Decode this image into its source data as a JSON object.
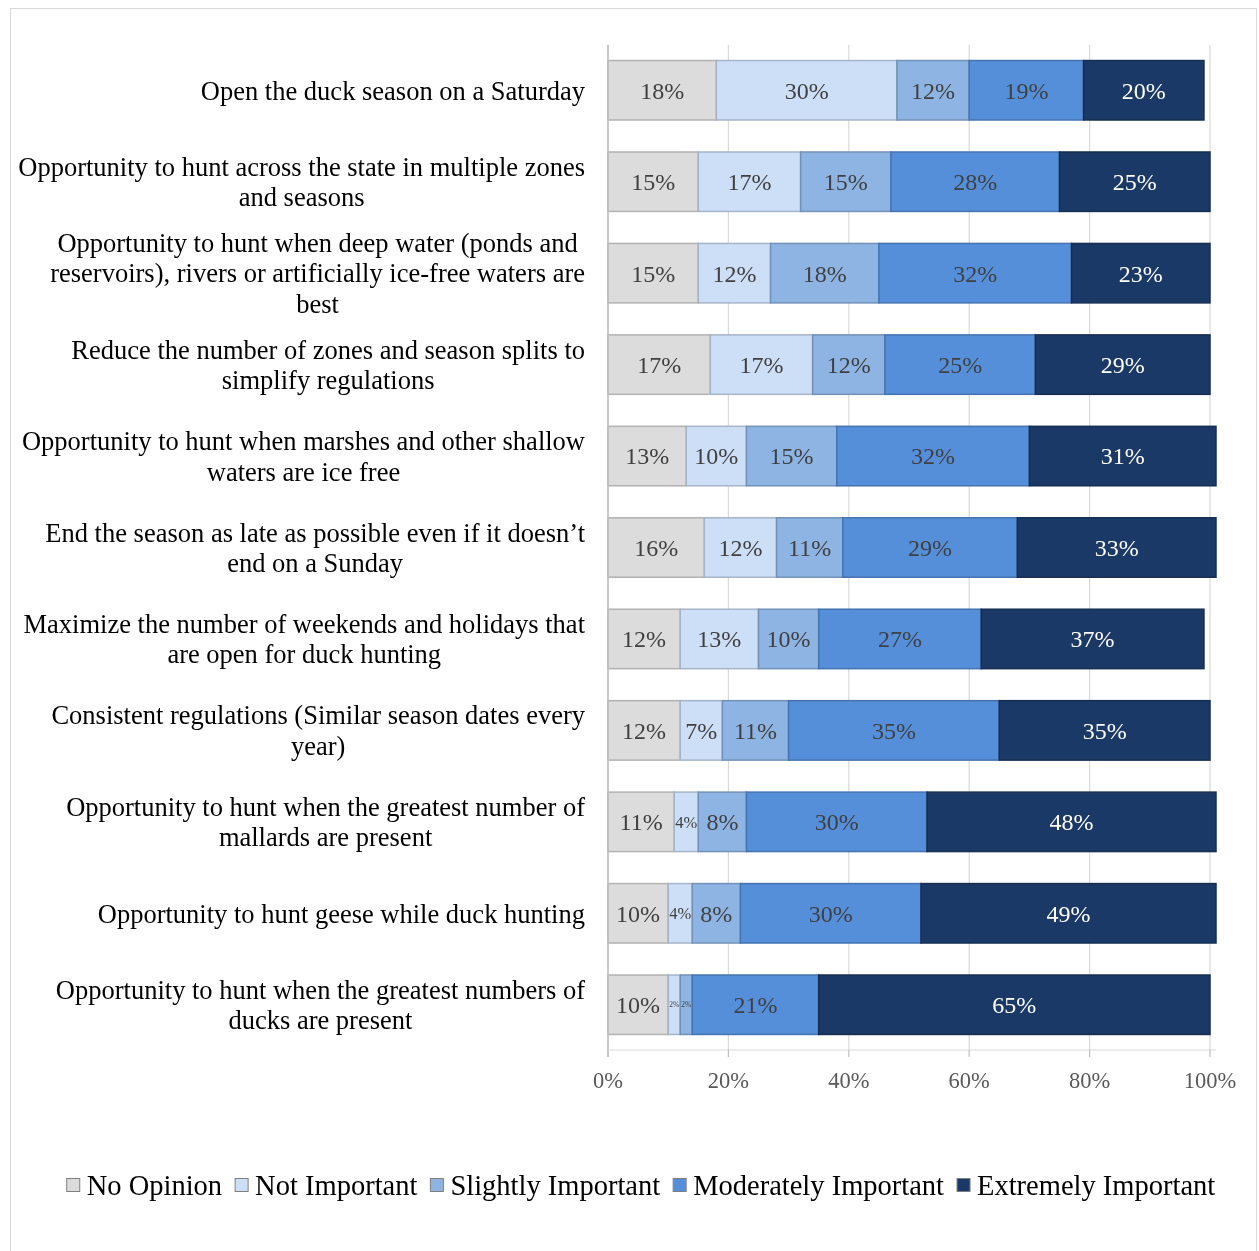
{
  "chart_data": {
    "type": "bar",
    "orientation": "horizontal",
    "stacked": true,
    "categories": [
      "Open the duck season on a Saturday",
      "Opportunity to hunt across the state in multiple zones and seasons",
      "Opportunity to hunt when deep water (ponds and reservoirs), rivers or artificially ice-free waters are best",
      "Reduce the number of zones and season splits to simplify regulations",
      "Opportunity to hunt when marshes and other shallow waters are ice free",
      "End the season as late as possible even if it doesn’t end on a Sunday",
      "Maximize the number of weekends and holidays that are open for duck hunting",
      "Consistent regulations (Similar season dates every year)",
      "Opportunity to hunt when the greatest number of mallards are present",
      "Opportunity to hunt geese while duck hunting",
      "Opportunity to hunt when the greatest numbers of ducks are present"
    ],
    "series": [
      {
        "name": "No Opinion",
        "color": "#dcdcdc",
        "values": [
          18,
          15,
          15,
          17,
          13,
          16,
          12,
          12,
          11,
          10,
          10
        ],
        "value_labels": [
          "18%",
          "15%",
          "15%",
          "17%",
          "13%",
          "16%",
          "12%",
          "12%",
          "11%",
          "10%",
          "10%"
        ]
      },
      {
        "name": "Not Important",
        "color": "#cddff7",
        "values": [
          30,
          17,
          12,
          17,
          10,
          12,
          13,
          7,
          4,
          4,
          2
        ],
        "value_labels": [
          "30%",
          "17%",
          "12%",
          "17%",
          "10%",
          "12%",
          "13%",
          "7%",
          "4%",
          "4%",
          "2%"
        ]
      },
      {
        "name": "Slightly Important",
        "color": "#8db4e3",
        "values": [
          12,
          15,
          18,
          12,
          15,
          11,
          10,
          11,
          8,
          8,
          2
        ],
        "value_labels": [
          "12%",
          "15%",
          "18%",
          "12%",
          "15%",
          "11%",
          "10%",
          "11%",
          "8%",
          "8%",
          "2%"
        ]
      },
      {
        "name": "Moderately Important",
        "color": "#558fda",
        "values": [
          19,
          28,
          32,
          25,
          32,
          29,
          27,
          35,
          30,
          30,
          21
        ],
        "value_labels": [
          "19%",
          "28%",
          "32%",
          "25%",
          "32%",
          "29%",
          "27%",
          "35%",
          "30%",
          "30%",
          "21%"
        ]
      },
      {
        "name": "Extremely Important",
        "color": "#1b3966",
        "values": [
          20,
          25,
          23,
          29,
          31,
          33,
          37,
          35,
          48,
          49,
          65
        ],
        "value_labels": [
          "20%",
          "25%",
          "23%",
          "29%",
          "31%",
          "33%",
          "37%",
          "35%",
          "48%",
          "49%",
          "65%"
        ]
      }
    ],
    "xlim": [
      0,
      101
    ],
    "xticks": [
      {
        "value": 0,
        "label": "0%"
      },
      {
        "value": 20,
        "label": "20%"
      },
      {
        "value": 40,
        "label": "40%"
      },
      {
        "value": 60,
        "label": "60%"
      },
      {
        "value": 80,
        "label": "80%"
      },
      {
        "value": 100,
        "label": "100%"
      }
    ],
    "grid": "x",
    "legend": "bottom"
  }
}
